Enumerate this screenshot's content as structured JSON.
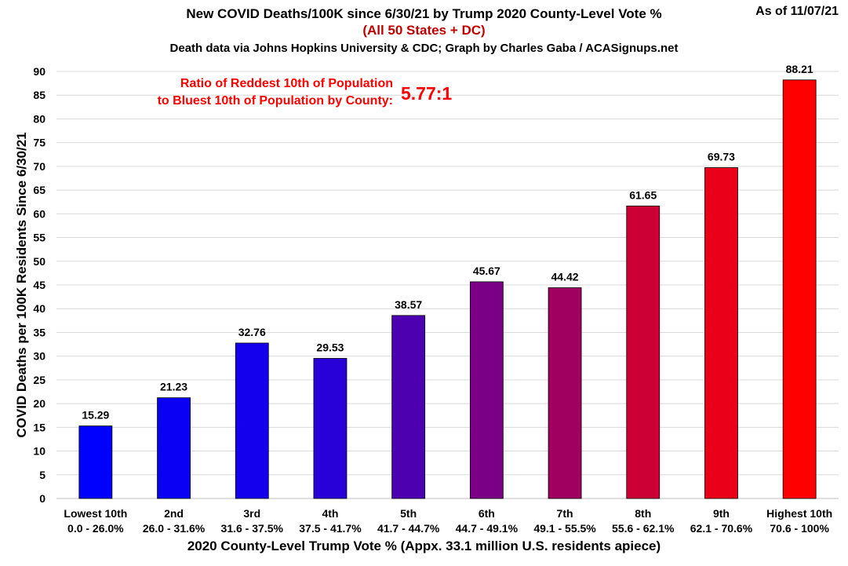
{
  "chart_data": {
    "type": "bar",
    "title": "New COVID Deaths/100K since 6/30/21 by Trump 2020 County-Level Vote %",
    "subtitle": "(All 50 States + DC)",
    "credit": "Death data via Johns Hopkins University & CDC; Graph by Charles Gaba / ACASignups.net",
    "as_of": "As of 11/07/21",
    "annotation_lines": [
      "Ratio of Reddest 10th of Population",
      "to Bluest 10th of Population by County:"
    ],
    "annotation_value": "5.77:1",
    "xlabel": "2020 County-Level Trump Vote % (Appx. 33.1 million U.S. residents apiece)",
    "ylabel": "COVID Deaths per 100K Residents Since 6/30/21",
    "ylim": [
      0,
      90
    ],
    "yticks": [
      0,
      5,
      10,
      15,
      20,
      25,
      30,
      35,
      40,
      45,
      50,
      55,
      60,
      65,
      70,
      75,
      80,
      85,
      90
    ],
    "grid": true,
    "categories": [
      "Lowest 10th",
      "2nd",
      "3rd",
      "4th",
      "5th",
      "6th",
      "7th",
      "8th",
      "9th",
      "Highest 10th"
    ],
    "ranges": [
      "0.0 - 26.0%",
      "26.0 - 31.6%",
      "31.6 - 37.5%",
      "37.5 - 41.7%",
      "41.7 - 44.7%",
      "44.7 - 49.1%",
      "49.1 - 55.5%",
      "55.6 - 62.1%",
      "62.1 - 70.6%",
      "70.6 - 100%"
    ],
    "values": [
      15.29,
      21.23,
      32.76,
      29.53,
      38.57,
      45.67,
      44.42,
      61.65,
      69.73,
      88.21
    ],
    "colors": [
      "#0000ff",
      "#0a00f4",
      "#1400ec",
      "#2800d8",
      "#4c00b0",
      "#7a0086",
      "#a00060",
      "#cc0034",
      "#ea0018",
      "#ff0000"
    ]
  }
}
